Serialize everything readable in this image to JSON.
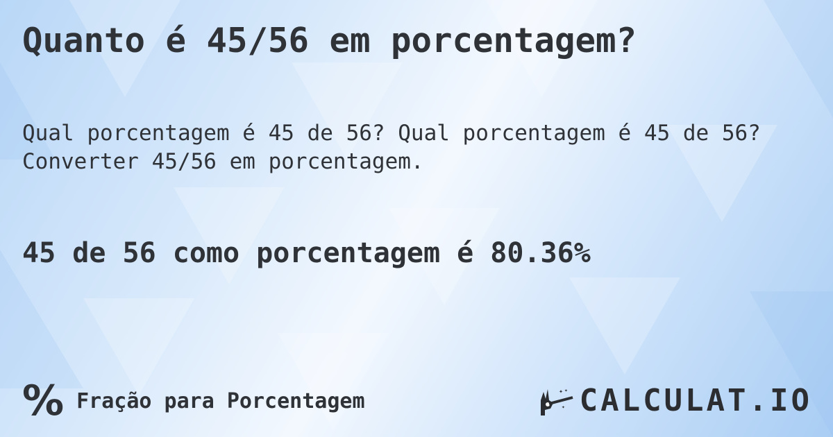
{
  "title": "Quanto é 45/56 em porcentagem?",
  "description": {
    "line1": "Qual porcentagem é 45 de 56? Qual porcentagem é 45 de 56?",
    "line2": "Converter 45/56 em porcentagem."
  },
  "result": "45 de 56 como porcentagem é 80.36%",
  "footer": {
    "icon": "percent-icon",
    "label": "Fração para Porcentagem"
  },
  "logo": {
    "text": "CALCULAT.IO",
    "icon": "magic-hand-icon"
  },
  "colors": {
    "text": "#2f3237",
    "background": "#cfe4fa"
  }
}
